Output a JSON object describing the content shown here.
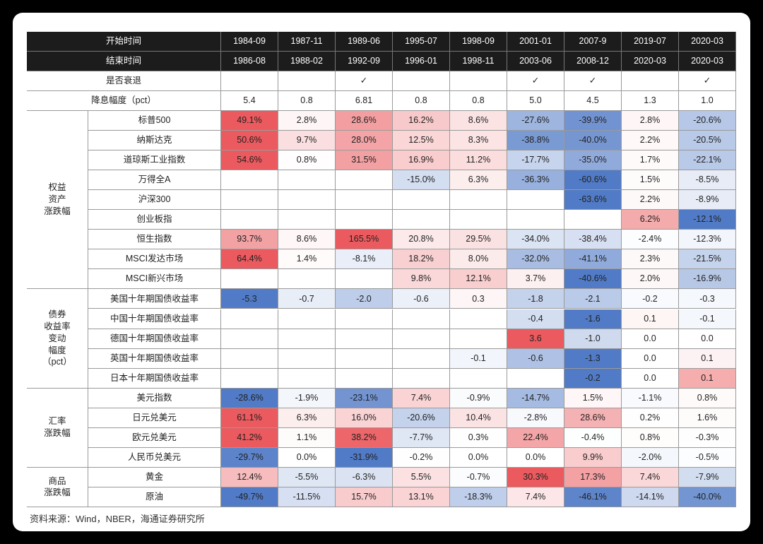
{
  "table": {
    "header": {
      "start_label": "开始时间",
      "start": [
        "1984-09",
        "1987-11",
        "1989-06",
        "1995-07",
        "1998-09",
        "2001-01",
        "2007-9",
        "2019-07",
        "2020-03"
      ],
      "end_label": "结束时间",
      "end": [
        "1986-08",
        "1988-02",
        "1992-09",
        "1996-01",
        "1998-11",
        "2003-06",
        "2008-12",
        "2020-03",
        "2020-03"
      ],
      "recession_label": "是否衰退",
      "recession": [
        null,
        null,
        "✓",
        null,
        null,
        "✓",
        "✓",
        null,
        "✓"
      ],
      "cut_label": "降息幅度（pct）",
      "cut": [
        "5.4",
        "0.8",
        "6.81",
        "0.8",
        "0.8",
        "5.0",
        "4.5",
        "1.3",
        "1.0"
      ]
    },
    "groups": [
      {
        "label": [
          "权益",
          "资产",
          "涨跌幅"
        ],
        "rows": [
          {
            "label": "标普500",
            "cells": [
              "49.1%",
              "2.8%",
              "28.6%",
              "16.2%",
              "8.6%",
              "-27.6%",
              "-39.9%",
              "2.8%",
              "-20.6%"
            ]
          },
          {
            "label": "纳斯达克",
            "cells": [
              "50.6%",
              "9.7%",
              "28.0%",
              "12.5%",
              "8.3%",
              "-38.8%",
              "-40.0%",
              "2.2%",
              "-20.5%"
            ]
          },
          {
            "label": "道琼斯工业指数",
            "cells": [
              "54.6%",
              "0.8%",
              "31.5%",
              "16.9%",
              "11.2%",
              "-17.7%",
              "-35.0%",
              "1.7%",
              "-22.1%"
            ]
          },
          {
            "label": "万得全A",
            "cells": [
              null,
              null,
              null,
              "-15.0%",
              "6.3%",
              "-36.3%",
              "-60.6%",
              "1.5%",
              "-8.5%"
            ]
          },
          {
            "label": "沪深300",
            "cells": [
              null,
              null,
              null,
              null,
              null,
              null,
              "-63.6%",
              "2.2%",
              "-8.9%"
            ]
          },
          {
            "label": "创业板指",
            "cells": [
              null,
              null,
              null,
              null,
              null,
              null,
              null,
              "6.2%",
              "-12.1%"
            ]
          },
          {
            "label": "恒生指数",
            "cells": [
              "93.7%",
              "8.6%",
              "165.5%",
              "20.8%",
              "29.5%",
              "-34.0%",
              "-38.4%",
              "-2.4%",
              "-12.3%"
            ]
          },
          {
            "label": "MSCI发达市场",
            "cells": [
              "64.4%",
              "1.4%",
              "-8.1%",
              "18.2%",
              "8.0%",
              "-32.0%",
              "-41.1%",
              "2.3%",
              "-21.5%"
            ]
          },
          {
            "label": "MSCI新兴市场",
            "cells": [
              null,
              null,
              null,
              "9.8%",
              "12.1%",
              "3.7%",
              "-40.6%",
              "2.0%",
              "-16.9%"
            ]
          }
        ]
      },
      {
        "label": [
          "债券",
          "收益率",
          "变动",
          "幅度",
          "（pct）"
        ],
        "rows": [
          {
            "label": "美国十年期国债收益率",
            "cells": [
              "-5.3",
              "-0.7",
              "-2.0",
              "-0.6",
              "0.3",
              "-1.8",
              "-2.1",
              "-0.2",
              "-0.3"
            ]
          },
          {
            "label": "中国十年期国债收益率",
            "cells": [
              null,
              null,
              null,
              null,
              null,
              "-0.4",
              "-1.6",
              "0.1",
              "-0.1"
            ]
          },
          {
            "label": "德国十年期国债收益率",
            "cells": [
              null,
              null,
              null,
              null,
              null,
              "3.6",
              "-1.0",
              "0.0",
              "0.0"
            ]
          },
          {
            "label": "英国十年期国债收益率",
            "cells": [
              null,
              null,
              null,
              null,
              "-0.1",
              "-0.6",
              "-1.3",
              "0.0",
              "0.1"
            ]
          },
          {
            "label": "日本十年期国债收益率",
            "cells": [
              null,
              null,
              null,
              null,
              null,
              null,
              "-0.2",
              "0.0",
              "0.1"
            ]
          }
        ]
      },
      {
        "label": [
          "汇率",
          "涨跌幅"
        ],
        "rows": [
          {
            "label": "美元指数",
            "cells": [
              "-28.6%",
              "-1.9%",
              "-23.1%",
              "7.4%",
              "-0.9%",
              "-14.7%",
              "1.5%",
              "-1.1%",
              "0.8%"
            ]
          },
          {
            "label": "日元兑美元",
            "cells": [
              "61.1%",
              "6.3%",
              "16.0%",
              "-20.6%",
              "10.4%",
              "-2.8%",
              "28.6%",
              "0.2%",
              "1.6%"
            ]
          },
          {
            "label": "欧元兑美元",
            "cells": [
              "41.2%",
              "1.1%",
              "38.2%",
              "-7.7%",
              "0.3%",
              "22.4%",
              "-0.4%",
              "0.8%",
              "-0.3%"
            ]
          },
          {
            "label": "人民币兑美元",
            "cells": [
              "-29.7%",
              "0.0%",
              "-31.9%",
              "-0.2%",
              "0.0%",
              "0.0%",
              "9.9%",
              "-2.0%",
              "-0.5%"
            ]
          }
        ]
      },
      {
        "label": [
          "商品",
          "涨跌幅"
        ],
        "rows": [
          {
            "label": "黄金",
            "cells": [
              "12.4%",
              "-5.5%",
              "-6.3%",
              "5.5%",
              "-0.7%",
              "30.3%",
              "17.3%",
              "7.4%",
              "-7.9%"
            ]
          },
          {
            "label": "原油",
            "cells": [
              "-49.7%",
              "-11.5%",
              "15.7%",
              "13.1%",
              "-18.3%",
              "7.4%",
              "-46.1%",
              "-14.1%",
              "-40.0%"
            ]
          }
        ]
      }
    ]
  },
  "source": "资料来源：Wind，NBER，海通证券研究所"
}
